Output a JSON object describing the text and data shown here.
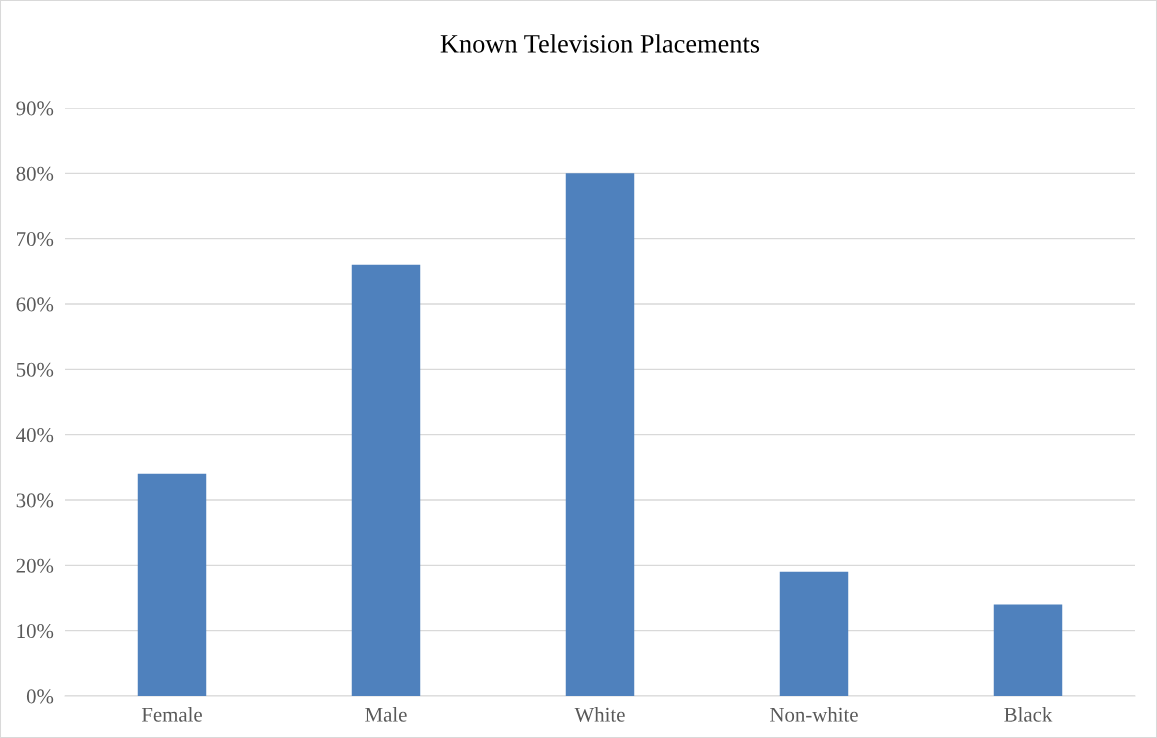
{
  "chart_data": {
    "type": "bar",
    "title": "Known Television Placements",
    "categories": [
      "Female",
      "Male",
      "White",
      "Non-white",
      "Black"
    ],
    "values": [
      34,
      66,
      80,
      19,
      14
    ],
    "color": "#4f81bd",
    "ylim": [
      0,
      90
    ],
    "yticks": [
      {
        "value": 0,
        "label": "0%"
      },
      {
        "value": 10,
        "label": "10%"
      },
      {
        "value": 20,
        "label": "20%"
      },
      {
        "value": 30,
        "label": "30%"
      },
      {
        "value": 40,
        "label": "40%"
      },
      {
        "value": 50,
        "label": "50%"
      },
      {
        "value": 60,
        "label": "60%"
      },
      {
        "value": 70,
        "label": "70%"
      },
      {
        "value": 80,
        "label": "80%"
      },
      {
        "value": 90,
        "label": "90%"
      }
    ],
    "grid": "y",
    "legend": false
  }
}
